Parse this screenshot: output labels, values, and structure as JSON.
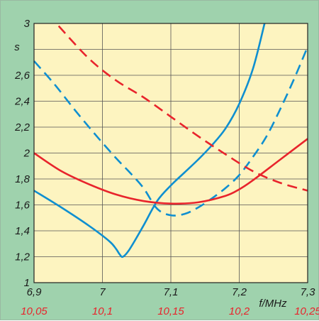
{
  "chart_data": {
    "type": "line",
    "xlabel": "f/MHz",
    "ylabel": "s",
    "grid": true,
    "x_axis_bottom": {
      "ticks": [
        6.9,
        7,
        7.1,
        7.2,
        7.3
      ],
      "labels": [
        "6,9",
        "7",
        "7,1",
        "7,2",
        "7,3"
      ],
      "range": [
        6.9,
        7.3
      ]
    },
    "x_axis_secondary": {
      "ticks": [
        10.05,
        10.1,
        10.15,
        10.2,
        10.25
      ],
      "labels": [
        "10,05",
        "10,1",
        "10,15",
        "10,2",
        "10,25"
      ],
      "range": [
        10.05,
        10.25
      ],
      "color": "#e8242c"
    },
    "y_axis": {
      "ticks": [
        1,
        1.2,
        1.4,
        1.6,
        1.8,
        2,
        2.2,
        2.4,
        2.6,
        3
      ],
      "labels": [
        "1",
        "1,2",
        "1,4",
        "1,6",
        "1,8",
        "2",
        "2,2",
        "2,4",
        "2,6",
        "3"
      ],
      "range": [
        1,
        3
      ]
    },
    "series": [
      {
        "color": "#0f8fd0",
        "dash": false,
        "axis": "bottom",
        "x": [
          6.9,
          6.94,
          6.98,
          7.01,
          7.02,
          7.025,
          7.03,
          7.04,
          7.06,
          7.08,
          7.1,
          7.12,
          7.14,
          7.16,
          7.18,
          7.2,
          7.22,
          7.237
        ],
        "y": [
          1.71,
          1.58,
          1.44,
          1.32,
          1.26,
          1.22,
          1.2,
          1.26,
          1.44,
          1.63,
          1.75,
          1.85,
          1.95,
          2.06,
          2.19,
          2.38,
          2.65,
          3.0
        ]
      },
      {
        "color": "#0f8fd0",
        "dash": true,
        "axis": "bottom",
        "x": [
          6.9,
          6.93,
          6.96,
          6.99,
          7.02,
          7.04,
          7.06,
          7.08,
          7.1,
          7.12,
          7.14,
          7.16,
          7.18,
          7.2,
          7.22,
          7.24,
          7.26,
          7.28,
          7.3
        ],
        "y": [
          2.71,
          2.53,
          2.33,
          2.14,
          1.96,
          1.85,
          1.73,
          1.57,
          1.52,
          1.53,
          1.58,
          1.65,
          1.73,
          1.83,
          1.97,
          2.13,
          2.34,
          2.57,
          2.82
        ]
      },
      {
        "color": "#e8242c",
        "dash": false,
        "axis": "secondary",
        "x": [
          10.05,
          10.07,
          10.09,
          10.11,
          10.13,
          10.15,
          10.17,
          10.19,
          10.2,
          10.21,
          10.23,
          10.25
        ],
        "y": [
          2.0,
          1.86,
          1.76,
          1.68,
          1.63,
          1.61,
          1.62,
          1.67,
          1.72,
          1.79,
          1.95,
          2.11
        ]
      },
      {
        "color": "#e8242c",
        "dash": true,
        "axis": "secondary",
        "x": [
          10.068,
          10.09,
          10.11,
          10.13,
          10.15,
          10.17,
          10.19,
          10.21,
          10.23,
          10.25
        ],
        "y": [
          2.98,
          2.73,
          2.56,
          2.43,
          2.28,
          2.13,
          1.99,
          1.86,
          1.77,
          1.71
        ]
      }
    ]
  }
}
